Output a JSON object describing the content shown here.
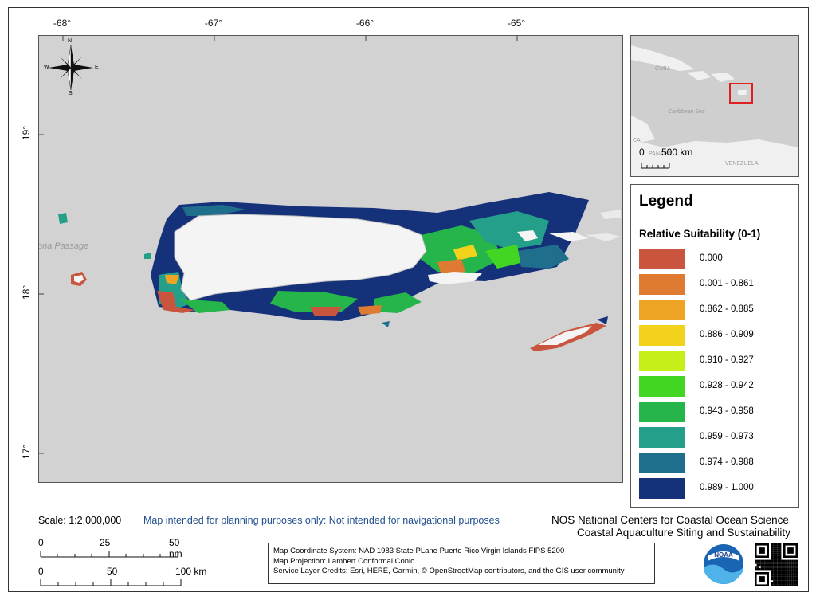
{
  "map": {
    "lon_ticks": [
      "-68°",
      "-67°",
      "-66°",
      "-65°"
    ],
    "lat_ticks": [
      "19°",
      "18°",
      "17°"
    ],
    "compass": {
      "n": "N",
      "s": "S",
      "e": "E",
      "w": "W"
    },
    "place_labels": {
      "mona_passage": "ona Passage"
    }
  },
  "inset": {
    "labels": {
      "cuba": "CUBA",
      "caribbean_sea": "Caribbean Sea",
      "venezuela": "VENEZUELA",
      "ca": "CA",
      "panama": "PANAMA"
    },
    "scale_zero": "0",
    "scale_text": "500 km",
    "highlight_color": "#e02020"
  },
  "legend": {
    "title": "Legend",
    "subtitle": "Relative Suitability (0-1)",
    "classes": [
      {
        "label": "0.000",
        "color": "#c9553f"
      },
      {
        "label": "0.001 - 0.861",
        "color": "#de7a31"
      },
      {
        "label": "0.862 - 0.885",
        "color": "#eea525"
      },
      {
        "label": "0.886 - 0.909",
        "color": "#f3d21b"
      },
      {
        "label": "0.910 - 0.927",
        "color": "#c6ee18"
      },
      {
        "label": "0.928 - 0.942",
        "color": "#42d523"
      },
      {
        "label": "0.943 - 0.958",
        "color": "#25b54a"
      },
      {
        "label": "0.959 - 0.973",
        "color": "#24a08a"
      },
      {
        "label": "0.974 - 0.988",
        "color": "#1e6e8c"
      },
      {
        "label": "0.989 - 1.000",
        "color": "#15317a"
      }
    ]
  },
  "footer": {
    "scale": "Scale: 1:2,000,000",
    "disclaimer": "Map intended for planning purposes only: Not intended for navigational purposes",
    "org_line1": "NOS National Centers for Coastal Ocean Science",
    "org_line2": "Coastal Aquaculture Siting and Sustainability",
    "scale_nm": [
      "0",
      "25",
      "50 nm"
    ],
    "scale_km": [
      "0",
      "50",
      "100 km"
    ],
    "credits": [
      "Map Coordinate System: NAD 1983 State PLane Puerto Rico Virgin Islands FIPS 5200",
      "Map Projection: Lambert Conformal Conic",
      "Service Layer Credits: Esri, HERE, Garmin, © OpenStreetMap contributors, and the GIS user community"
    ],
    "noaa_logo_text": "NOAA"
  }
}
